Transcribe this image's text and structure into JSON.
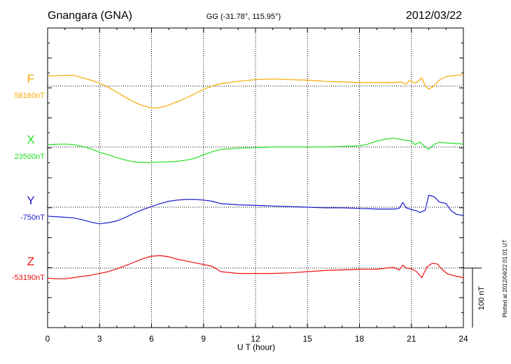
{
  "header": {
    "station": "Gnangara (GNA)",
    "coords": "GG (-31.78°, 115.95°)",
    "date": "2012/03/22"
  },
  "footer": {
    "plotted_note": "Plotted at 2012/04/22 01:01  UT",
    "scale_label": "100 nT"
  },
  "chart_data": {
    "type": "line",
    "title": "Gnangara (GNA)",
    "subtitle": "GG (-31.78°, 115.95°)",
    "xlabel": "U T (hour)",
    "ylabel": "",
    "xlim": [
      0,
      24
    ],
    "x_ticks": [
      "0",
      "3",
      "6",
      "9",
      "12",
      "15",
      "18",
      "21",
      "24"
    ],
    "grid": true,
    "scale_bar_nT": 100,
    "series": [
      {
        "name": "F",
        "baseline_label": "58160nT",
        "color": "#f5a800",
        "baseline_nT": 58160,
        "x": [
          0,
          1,
          1.5,
          2,
          2.5,
          3,
          3.5,
          4,
          4.5,
          5,
          5.5,
          6,
          6.5,
          7,
          7.5,
          8,
          8.5,
          9,
          9.5,
          10,
          11,
          12,
          13,
          14,
          15,
          16,
          17,
          18,
          19,
          20,
          20.4,
          20.7,
          20.9,
          21.2,
          21.4,
          21.6,
          21.8,
          22,
          22.3,
          22.6,
          23,
          23.5,
          24
        ],
        "values": [
          58177,
          58178,
          58178,
          58174,
          58170,
          58165,
          58158,
          58150,
          58141,
          58133,
          58127,
          58123,
          58124,
          58128,
          58134,
          58140,
          58147,
          58155,
          58160,
          58164,
          58168,
          58171,
          58172,
          58171,
          58170,
          58168,
          58167,
          58166,
          58166,
          58166,
          58167,
          58163,
          58170,
          58165,
          58168,
          58174,
          58160,
          58155,
          58160,
          58170,
          58176,
          58178,
          58179
        ]
      },
      {
        "name": "X",
        "baseline_label": "23500nT",
        "color": "#22e022",
        "baseline_nT": 23500,
        "x": [
          0,
          1,
          1.5,
          2,
          2.5,
          3,
          3.5,
          4,
          4.5,
          5,
          5.5,
          6,
          6.5,
          7,
          7.5,
          8,
          8.5,
          9,
          9.5,
          10,
          11,
          12,
          13,
          14,
          15,
          16,
          17,
          18,
          18.5,
          19,
          19.5,
          20,
          20.5,
          21,
          21.2,
          21.5,
          21.8,
          22,
          22.3,
          22.6,
          23,
          23.5,
          24
        ],
        "values": [
          23504,
          23505,
          23504,
          23501,
          23497,
          23491,
          23487,
          23482,
          23478,
          23475,
          23474,
          23474,
          23475,
          23475,
          23476,
          23478,
          23481,
          23487,
          23492,
          23496,
          23498,
          23499,
          23500,
          23500,
          23500,
          23500,
          23501,
          23502,
          23505,
          23510,
          23513,
          23515,
          23512,
          23510,
          23504,
          23508,
          23500,
          23496,
          23504,
          23508,
          23507,
          23506,
          23505
        ]
      },
      {
        "name": "Y",
        "baseline_label": "-750nT",
        "color": "#1a1acc",
        "baseline_nT": -750,
        "x": [
          0,
          0.5,
          1,
          1.5,
          2,
          2.5,
          3,
          3.5,
          4,
          4.5,
          5,
          5.5,
          6,
          6.5,
          7,
          7.5,
          8,
          8.5,
          9,
          9.5,
          10,
          11,
          12,
          13,
          14,
          15,
          16,
          17,
          18,
          19,
          20,
          20.3,
          20.5,
          20.7,
          21,
          21.3,
          21.5,
          21.8,
          22,
          22.3,
          22.6,
          23,
          23.3,
          23.6,
          24
        ],
        "values": [
          -765,
          -766,
          -767,
          -768,
          -771,
          -775,
          -778,
          -776,
          -773,
          -767,
          -760,
          -754,
          -749,
          -744,
          -740,
          -738,
          -737,
          -737,
          -738,
          -740,
          -744,
          -746,
          -747,
          -748,
          -749,
          -750,
          -751,
          -751,
          -752,
          -753,
          -753,
          -752,
          -742,
          -751,
          -754,
          -756,
          -759,
          -755,
          -730,
          -732,
          -741,
          -744,
          -756,
          -762,
          -764
        ]
      },
      {
        "name": "Z",
        "baseline_label": "-53190nT",
        "color": "#ee1111",
        "baseline_nT": -53190,
        "x": [
          0,
          0.5,
          1,
          1.5,
          2,
          2.5,
          3,
          3.5,
          4,
          4.5,
          5,
          5.5,
          6,
          6.5,
          7,
          7.5,
          8,
          8.5,
          9,
          9.5,
          10,
          11,
          12,
          13,
          14,
          15,
          16,
          17,
          18,
          19,
          19.5,
          20,
          20.3,
          20.5,
          20.7,
          21,
          21.3,
          21.6,
          21.9,
          22.2,
          22.5,
          22.8,
          23.1,
          23.5,
          24
        ],
        "values": [
          -53207,
          -53208,
          -53208,
          -53206,
          -53204,
          -53202,
          -53199,
          -53196,
          -53191,
          -53186,
          -53180,
          -53174,
          -53170,
          -53169,
          -53171,
          -53175,
          -53178,
          -53181,
          -53184,
          -53187,
          -53196,
          -53199,
          -53199,
          -53199,
          -53198,
          -53196,
          -53194,
          -53193,
          -53192,
          -53192,
          -53190,
          -53189,
          -53193,
          -53185,
          -53190,
          -53191,
          -53196,
          -53206,
          -53188,
          -53182,
          -53183,
          -53193,
          -53200,
          -53203,
          -53206
        ]
      }
    ]
  }
}
